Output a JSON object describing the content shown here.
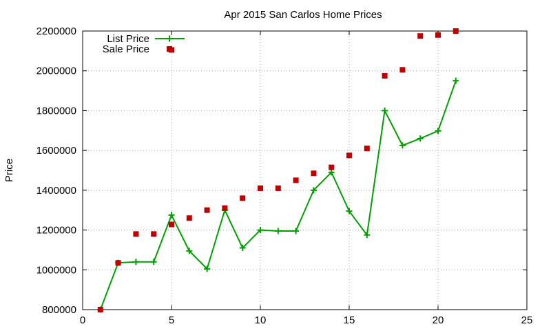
{
  "chart_data": {
    "type": "line",
    "title": "Apr 2015 San Carlos Home Prices",
    "xlabel": "",
    "ylabel": "Price",
    "xlim": [
      0,
      25
    ],
    "ylim": [
      800000,
      2200000
    ],
    "x_ticks": [
      0,
      5,
      10,
      15,
      20,
      25
    ],
    "y_ticks": [
      800000,
      1000000,
      1200000,
      1400000,
      1600000,
      1800000,
      2000000,
      2200000
    ],
    "grid": true,
    "legend_position": "top-left",
    "series": [
      {
        "name": "List Price",
        "style": "line-with-plus-markers",
        "color": "#00a000",
        "x": [
          1,
          2,
          3,
          4,
          5,
          6,
          7,
          8,
          9,
          10,
          11,
          12,
          13,
          14,
          15,
          16,
          17,
          18,
          19,
          20,
          21
        ],
        "y": [
          800000,
          1035000,
          1040000,
          1040000,
          1275000,
          1095000,
          1005000,
          1300000,
          1110000,
          1200000,
          1195000,
          1195000,
          1400000,
          1490000,
          1295000,
          1175000,
          1800000,
          1625000,
          1660000,
          1698000,
          1950000
        ]
      },
      {
        "name": "Sale Price",
        "style": "square-markers",
        "color": "#c00000",
        "x": [
          1,
          2,
          3,
          4,
          5,
          6,
          7,
          8,
          9,
          10,
          11,
          12,
          13,
          14,
          15,
          16,
          17,
          18,
          19,
          20,
          21
        ],
        "y": [
          800000,
          1035000,
          1180000,
          1180000,
          1228000,
          1260000,
          1300000,
          1310000,
          1360000,
          1410000,
          1410000,
          1450000,
          1485000,
          1515000,
          1575000,
          1610000,
          1975000,
          2005000,
          2175000,
          2180000,
          2200000
        ]
      },
      {
        "name": "",
        "style": "square-markers",
        "color": "#c00000",
        "x": [
          5
        ],
        "y": [
          2105000
        ]
      }
    ]
  }
}
